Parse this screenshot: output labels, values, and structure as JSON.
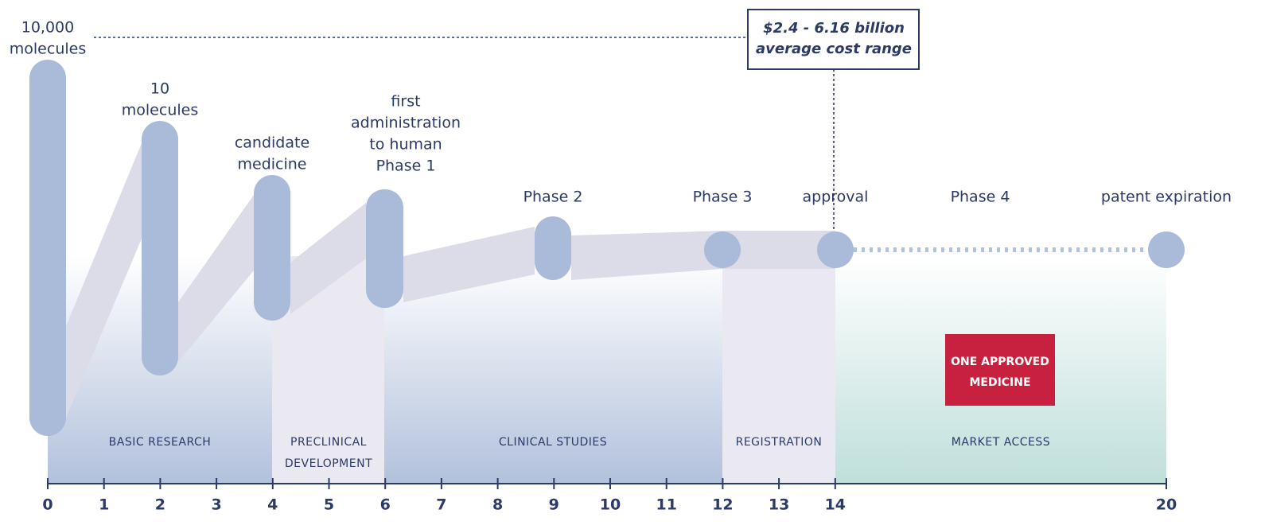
{
  "milestones": [
    {
      "lines": [
        "10,000",
        "molecules"
      ]
    },
    {
      "lines": [
        "10",
        "molecules"
      ]
    },
    {
      "lines": [
        "candidate",
        "medicine"
      ]
    },
    {
      "lines": [
        "first",
        "administration",
        "to human",
        "Phase 1"
      ]
    },
    {
      "lines": [
        "Phase 2"
      ]
    },
    {
      "lines": [
        "Phase 3"
      ]
    },
    {
      "lines": [
        "approval"
      ]
    },
    {
      "lines": [
        "Phase 4"
      ]
    },
    {
      "lines": [
        "patent expiration"
      ]
    }
  ],
  "cost": {
    "lines": [
      "$2.4 - 6.16 billion",
      "average cost range"
    ]
  },
  "stages": [
    {
      "lines": [
        "BASIC RESEARCH"
      ]
    },
    {
      "lines": [
        "PRECLINICAL",
        "DEVELOPMENT"
      ]
    },
    {
      "lines": [
        "CLINICAL STUDIES"
      ]
    },
    {
      "lines": [
        "REGISTRATION"
      ]
    },
    {
      "lines": [
        "MARKET ACCESS"
      ]
    }
  ],
  "callout": {
    "lines": [
      "ONE APPROVED",
      "MEDICINE"
    ]
  },
  "axis": {
    "ticks": [
      0,
      1,
      2,
      3,
      4,
      5,
      6,
      7,
      8,
      9,
      10,
      11,
      12,
      13,
      14,
      20
    ]
  }
}
